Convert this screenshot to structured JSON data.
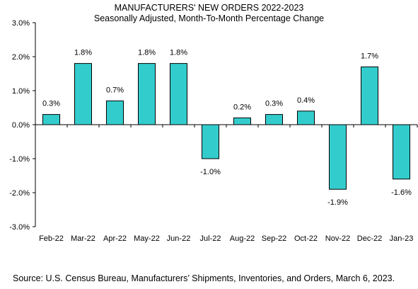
{
  "chart_data": {
    "type": "bar",
    "title": "MANUFACTURERS' NEW ORDERS 2022-2023",
    "subtitle": "Seasonally Adjusted,  Month-To-Month Percentage Change",
    "categories": [
      "Feb-22",
      "Mar-22",
      "Apr-22",
      "May-22",
      "Jun-22",
      "Jul-22",
      "Aug-22",
      "Sep-22",
      "Oct-22",
      "Nov-22",
      "Dec-22",
      "Jan-23"
    ],
    "values": [
      0.3,
      1.8,
      0.7,
      1.8,
      1.8,
      -1.0,
      0.2,
      0.3,
      0.4,
      -1.9,
      1.7,
      -1.6
    ],
    "data_labels": [
      "0.3%",
      "1.8%",
      "0.7%",
      "1.8%",
      "1.8%",
      "-1.0%",
      "0.2%",
      "0.3%",
      "0.4%",
      "-1.9%",
      "1.7%",
      "-1.6%"
    ],
    "y_ticks": [
      3.0,
      2.0,
      1.0,
      0.0,
      -1.0,
      -2.0,
      -3.0
    ],
    "y_tick_labels": [
      "3.0%",
      "2.0%",
      "1.0%",
      "0.0%",
      "-1.0%",
      "-2.0%",
      "-3.0%"
    ],
    "ylim": [
      -3.0,
      3.0
    ],
    "xlabel": "",
    "ylabel": "",
    "grid": false,
    "bar_color": "#33CCCC",
    "bar_edge_color": "#000000"
  },
  "source": "Source: U.S. Census Bureau, Manufacturers’ Shipments, Inventories, and Orders, March 6, 2023."
}
